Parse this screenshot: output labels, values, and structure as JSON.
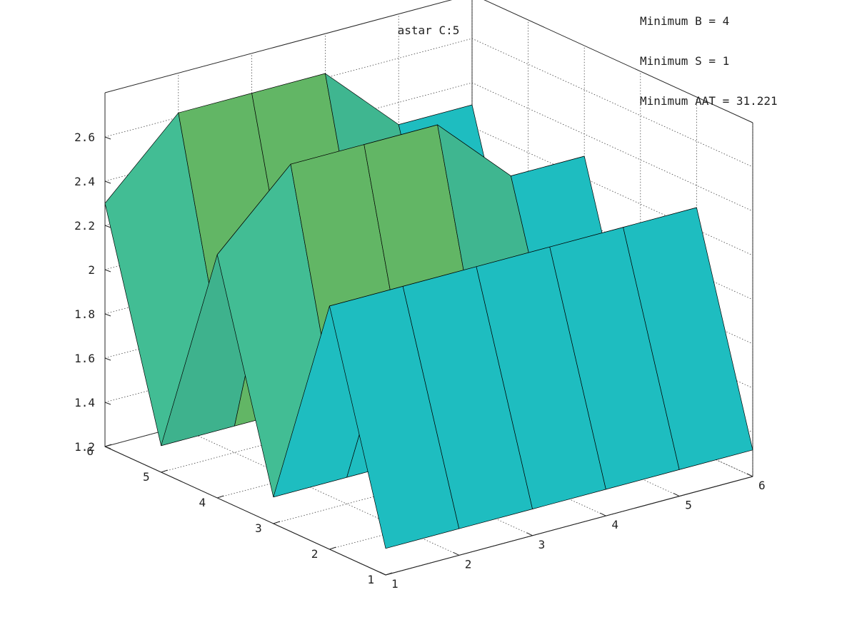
{
  "chart_data": {
    "type": "surface",
    "title": "astar C:5",
    "x": [
      1,
      2,
      3,
      4,
      5,
      6
    ],
    "y": [
      1,
      2,
      3,
      4,
      5,
      6
    ],
    "z": [
      [
        1.32,
        1.32,
        1.32,
        1.32,
        1.32,
        1.32
      ],
      [
        2.3,
        2.3,
        2.3,
        2.3,
        2.3,
        2.3
      ],
      [
        1.32,
        1.32,
        1.32,
        1.32,
        1.32,
        1.32
      ],
      [
        2.3,
        2.62,
        2.62,
        2.62,
        2.3,
        2.3
      ],
      [
        1.32,
        1.32,
        1.32,
        1.32,
        1.32,
        1.32
      ],
      [
        2.3,
        2.62,
        2.62,
        2.62,
        2.3,
        2.3
      ]
    ],
    "xticks": [
      "1",
      "2",
      "3",
      "4",
      "5",
      "6"
    ],
    "yticks": [
      "1",
      "2",
      "3",
      "4",
      "5",
      "6"
    ],
    "zticks": [
      "1.2",
      "1.4",
      "1.6",
      "1.8",
      "2",
      "2.2",
      "2.4",
      "2.6"
    ],
    "xlim": [
      1,
      6
    ],
    "ylim": [
      1,
      6
    ],
    "zlim": [
      1.2,
      2.8
    ],
    "colormap": "jet",
    "grid": true,
    "annotations": [
      "Minimum B = 4",
      "Minimum S = 1",
      "Minimum AAT = 31.221"
    ]
  }
}
